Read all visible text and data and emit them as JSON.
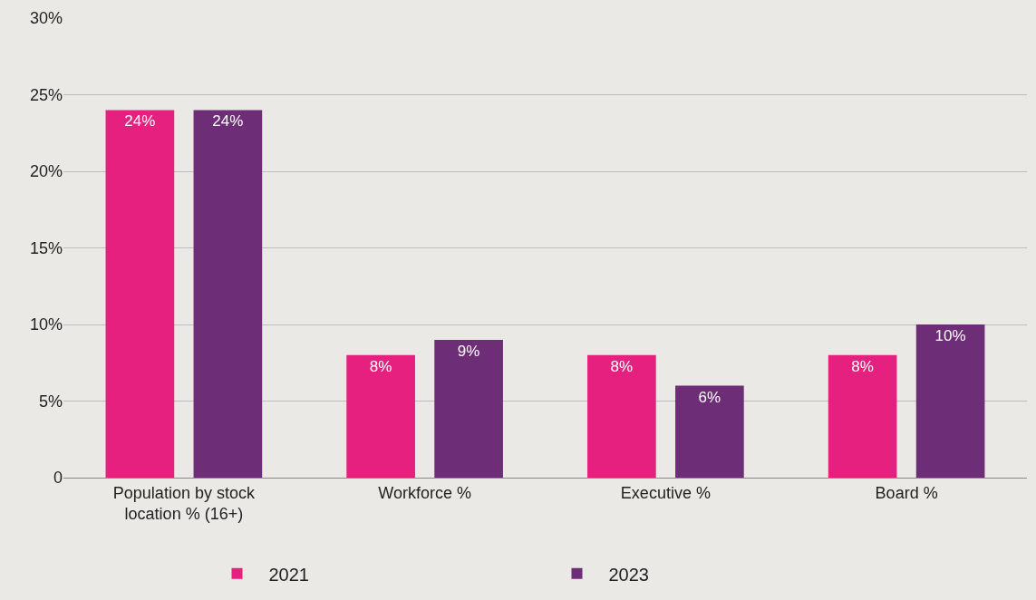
{
  "chart_data": {
    "type": "bar",
    "categories": [
      "Population by stock\nlocation % (16+)",
      "Workforce %",
      "Executive %",
      "Board %"
    ],
    "series": [
      {
        "name": "2021",
        "color": "#e5207f",
        "values": [
          24,
          8,
          8,
          8
        ],
        "value_labels": [
          "24%",
          "8%",
          "8%",
          "8%"
        ]
      },
      {
        "name": "2023",
        "color": "#6e2d77",
        "values": [
          24,
          9,
          6,
          10
        ],
        "value_labels": [
          "24%",
          "9%",
          "6%",
          "10%"
        ]
      }
    ],
    "ylim": [
      0,
      30
    ],
    "yticks": [
      {
        "value": 0,
        "label": "0"
      },
      {
        "value": 5,
        "label": "5%"
      },
      {
        "value": 10,
        "label": "10%"
      },
      {
        "value": 15,
        "label": "15%"
      },
      {
        "value": 20,
        "label": "20%"
      },
      {
        "value": 25,
        "label": "25%"
      },
      {
        "value": 30,
        "label": "30%"
      }
    ],
    "grid": "y",
    "legend": "bottom"
  }
}
